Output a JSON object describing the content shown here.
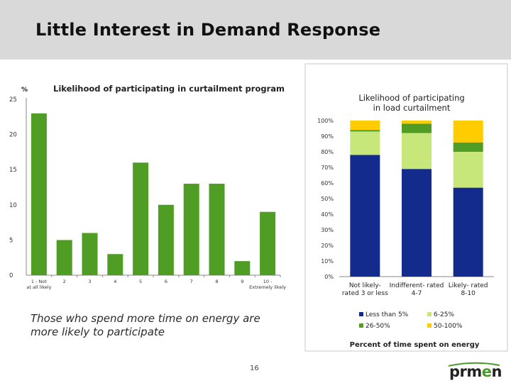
{
  "header": {
    "title": "Little Interest in Demand Response"
  },
  "caption": "Those who spend more time on energy are more likely to participate",
  "page_number": "16",
  "logo": {
    "prefix": "prm",
    "accent": "e",
    "suffix": "n"
  },
  "colors": {
    "header_bg": "#d9d9d9",
    "bar_green": "#4f9d24",
    "dark_blue": "#132b8c",
    "light_green": "#c8e77a",
    "mid_green": "#4f9d24",
    "yellow": "#ffcc00"
  },
  "chart_data": [
    {
      "type": "bar",
      "title": "Likelihood of participating in curtailment program",
      "ylabel": "%",
      "ylim": [
        0,
        25
      ],
      "yticks": [
        0,
        5,
        10,
        15,
        20,
        25
      ],
      "categories": [
        "1 - Not at all likely",
        "2",
        "3",
        "4",
        "5",
        "6",
        "7",
        "8",
        "9",
        "10 - Extremely likely"
      ],
      "values": [
        23,
        5,
        6,
        3,
        16,
        10,
        13,
        13,
        2,
        9
      ]
    },
    {
      "type": "bar",
      "stacked": true,
      "title": "Likelihood of participating in load curtailment",
      "xlabel": "Percent of time spent on energy",
      "ylim": [
        0,
        100
      ],
      "yticks": [
        "0%",
        "10%",
        "20%",
        "30%",
        "40%",
        "50%",
        "60%",
        "70%",
        "80%",
        "90%",
        "100%"
      ],
      "categories": [
        "Not likely- rated 3 or less",
        "Indifferent- rated 4-7",
        "Likely- rated 8-10"
      ],
      "series": [
        {
          "name": "Less than 5%",
          "values": [
            78,
            69,
            57
          ]
        },
        {
          "name": "6-25%",
          "values": [
            15,
            23,
            23
          ]
        },
        {
          "name": "26-50%",
          "values": [
            1,
            6,
            6
          ]
        },
        {
          "name": "50-100%",
          "values": [
            6,
            2,
            14
          ]
        }
      ],
      "legend_position": "bottom"
    }
  ]
}
